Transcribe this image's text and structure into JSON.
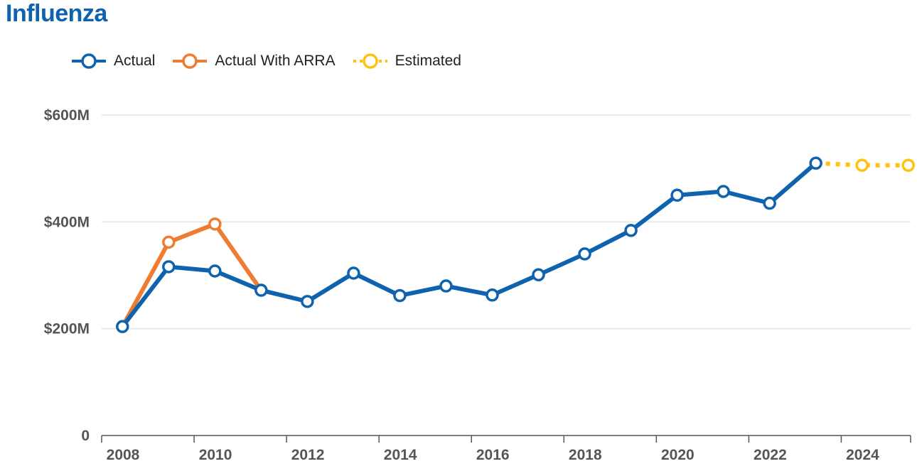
{
  "page_title": "Influenza",
  "chart_data": {
    "type": "line",
    "title": "Influenza",
    "xlabel": "",
    "ylabel": "",
    "xlim": [
      2008,
      2025.5
    ],
    "ylim": [
      0,
      600
    ],
    "y_ticks": [
      {
        "value": 0,
        "label": "0"
      },
      {
        "value": 200,
        "label": "$200M"
      },
      {
        "value": 400,
        "label": "$400M"
      },
      {
        "value": 600,
        "label": "$600M"
      }
    ],
    "x_ticks": [
      2008,
      2010,
      2012,
      2014,
      2016,
      2018,
      2020,
      2022,
      2024
    ],
    "grid": true,
    "legend_position": "top-left",
    "series": [
      {
        "name": "Actual",
        "color": "#0F62AE",
        "style": "solid",
        "points": [
          {
            "x": 2008.45,
            "y": 204
          },
          {
            "x": 2009.45,
            "y": 316
          },
          {
            "x": 2010.45,
            "y": 308
          },
          {
            "x": 2011.45,
            "y": 272
          },
          {
            "x": 2012.45,
            "y": 251
          },
          {
            "x": 2013.45,
            "y": 304
          },
          {
            "x": 2014.45,
            "y": 262
          },
          {
            "x": 2015.45,
            "y": 280
          },
          {
            "x": 2016.45,
            "y": 263
          },
          {
            "x": 2017.45,
            "y": 301
          },
          {
            "x": 2018.45,
            "y": 340
          },
          {
            "x": 2019.45,
            "y": 384
          },
          {
            "x": 2020.45,
            "y": 450
          },
          {
            "x": 2021.45,
            "y": 457
          },
          {
            "x": 2022.45,
            "y": 435
          },
          {
            "x": 2023.45,
            "y": 510
          }
        ]
      },
      {
        "name": "Actual With ARRA",
        "color": "#EE7D31",
        "style": "solid",
        "points": [
          {
            "x": 2008.45,
            "y": 204
          },
          {
            "x": 2009.45,
            "y": 362
          },
          {
            "x": 2010.45,
            "y": 396
          },
          {
            "x": 2011.45,
            "y": 272
          }
        ]
      },
      {
        "name": "Estimated",
        "color": "#FFC20E",
        "style": "dotted",
        "points": [
          {
            "x": 2023.45,
            "y": 510
          },
          {
            "x": 2024.45,
            "y": 506
          },
          {
            "x": 2025.45,
            "y": 506
          }
        ]
      }
    ]
  }
}
